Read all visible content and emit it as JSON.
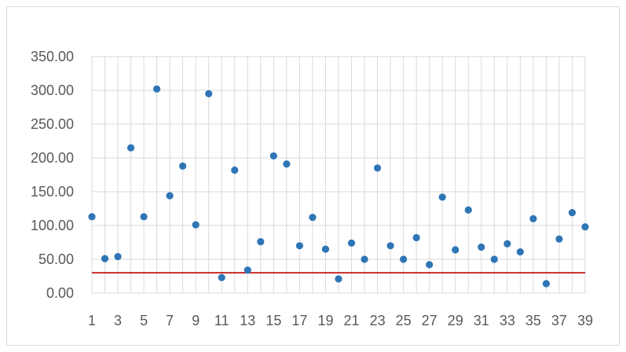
{
  "chart_data": {
    "type": "scatter",
    "title": "",
    "xlabel": "",
    "ylabel": "",
    "xlim": [
      1,
      39
    ],
    "ylim": [
      0,
      350
    ],
    "y_ticks": [
      "0.00",
      "50.00",
      "100.00",
      "150.00",
      "200.00",
      "250.00",
      "300.00",
      "350.00"
    ],
    "x_ticks": [
      "1",
      "3",
      "5",
      "7",
      "9",
      "11",
      "13",
      "15",
      "17",
      "19",
      "21",
      "23",
      "25",
      "27",
      "29",
      "31",
      "33",
      "35",
      "37",
      "39"
    ],
    "grid": "vertical and horizontal",
    "legend": "none",
    "series": [
      {
        "color": "#2e75b6",
        "x": [
          1,
          2,
          3,
          4,
          5,
          6,
          7,
          8,
          9,
          10,
          11,
          12,
          13,
          14,
          15,
          16,
          17,
          18,
          19,
          20,
          21,
          22,
          23,
          24,
          25,
          26,
          27,
          28,
          29,
          30,
          31,
          32,
          33,
          34,
          35,
          36,
          37,
          38,
          39
        ],
        "values": [
          113,
          51,
          54,
          215,
          113,
          302,
          144,
          188,
          101,
          295,
          23,
          182,
          34,
          76,
          203,
          191,
          70,
          112,
          65,
          21,
          74,
          50,
          185,
          70,
          50,
          82,
          42,
          142,
          64,
          123,
          68,
          50,
          73,
          61,
          110,
          14,
          80,
          119,
          98
        ]
      }
    ],
    "reference_line": {
      "y": 30,
      "color": "#c00000"
    }
  }
}
